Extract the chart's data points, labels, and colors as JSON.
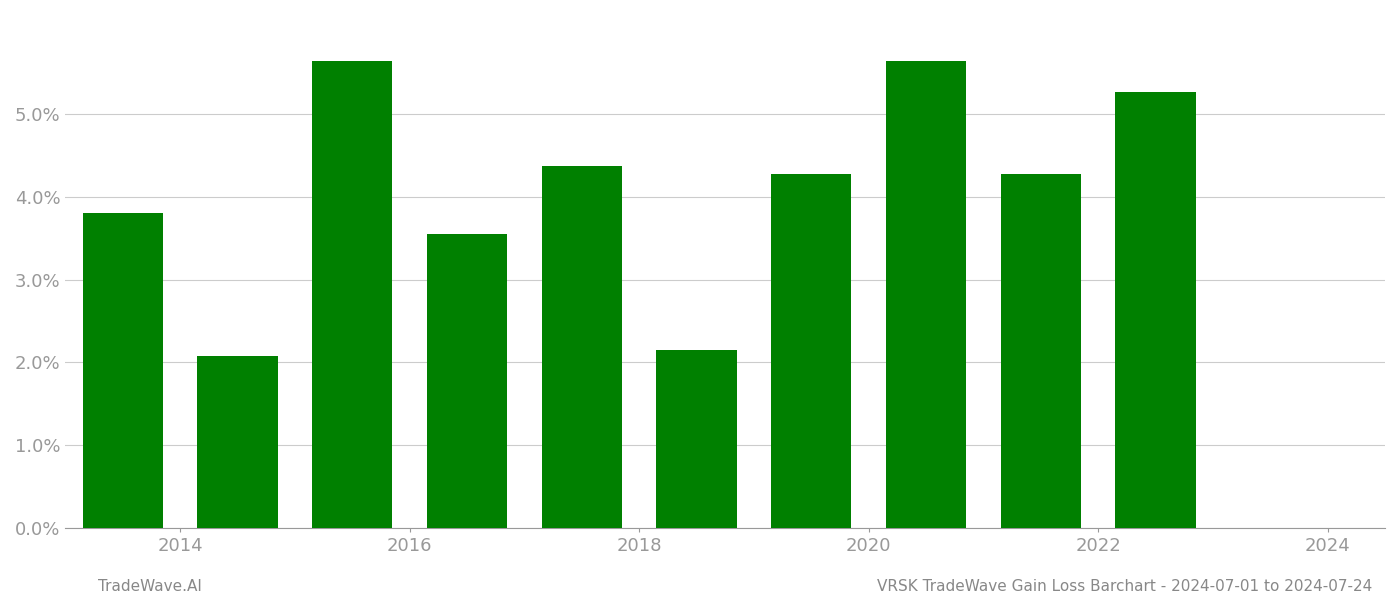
{
  "years": [
    2014,
    2015,
    2016,
    2017,
    2018,
    2019,
    2020,
    2021,
    2022,
    2023
  ],
  "values": [
    0.0381,
    0.0208,
    0.0565,
    0.0355,
    0.0437,
    0.0215,
    0.0428,
    0.0565,
    0.0428,
    0.0527
  ],
  "bar_color": "#008000",
  "background_color": "#ffffff",
  "grid_color": "#cccccc",
  "axis_color": "#999999",
  "tick_label_color": "#999999",
  "ylim": [
    0,
    0.062
  ],
  "yticks": [
    0.0,
    0.01,
    0.02,
    0.03,
    0.04,
    0.05
  ],
  "xtick_years": [
    2014,
    2016,
    2018,
    2020,
    2022,
    2024
  ],
  "footer_left": "TradeWave.AI",
  "footer_right": "VRSK TradeWave Gain Loss Barchart - 2024-07-01 to 2024-07-24",
  "footer_color": "#888888",
  "footer_fontsize": 11,
  "bar_width": 0.7
}
